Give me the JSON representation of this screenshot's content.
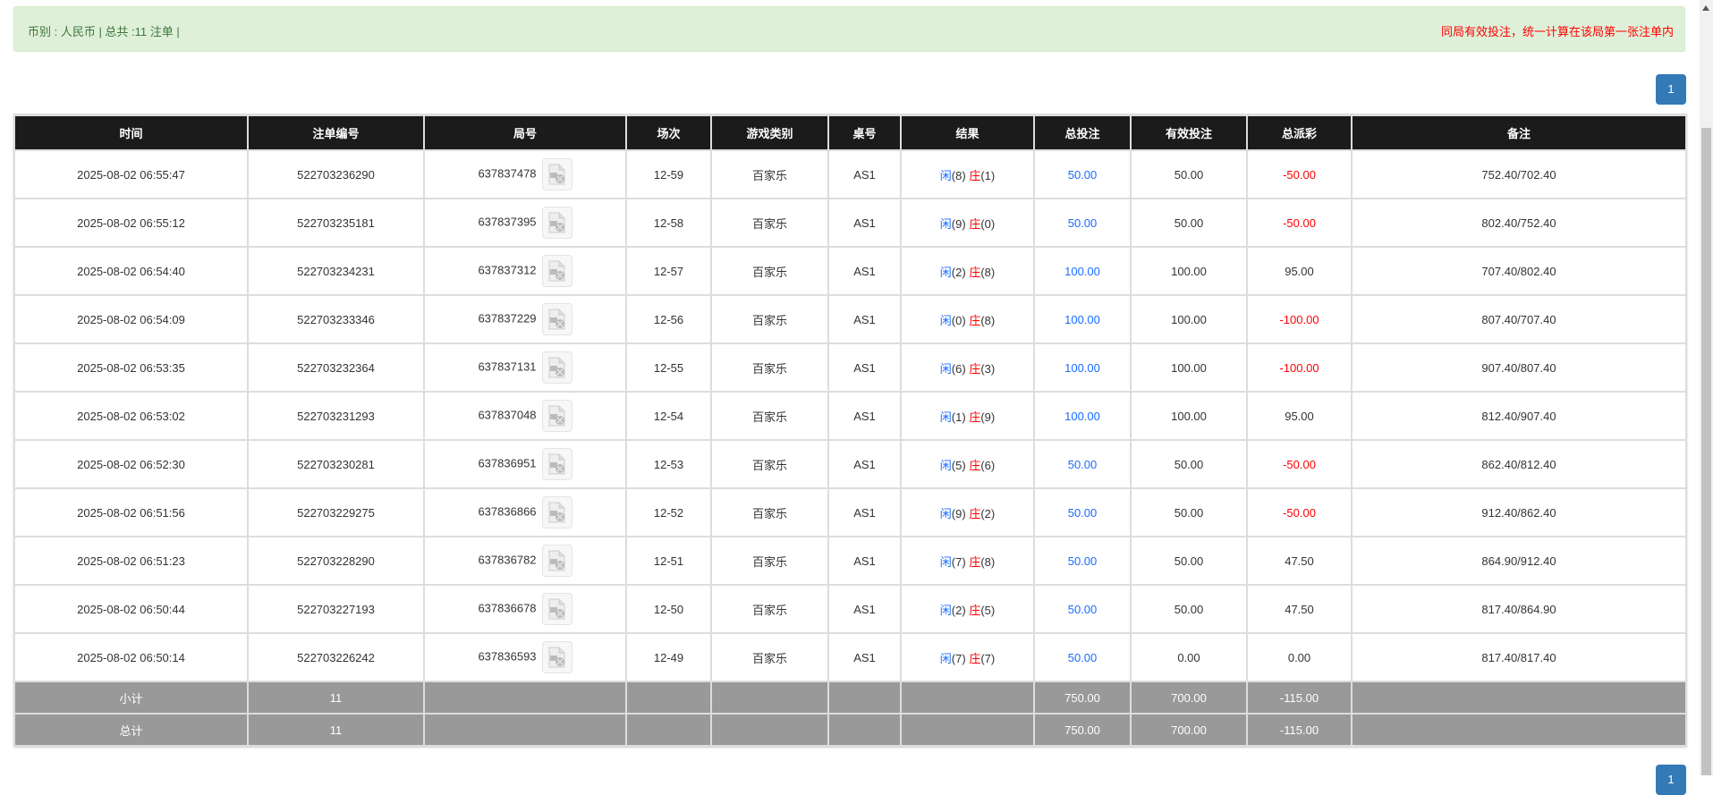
{
  "summary": {
    "left": "币别 : 人民币 | 总共 :11 注单 |",
    "right": "同局有效投注，统一计算在该局第一张注单内"
  },
  "pagination": {
    "current": "1"
  },
  "colors": {
    "blue": "#1a6cff",
    "red": "#ff0000",
    "header_bg": "#1b1b1b",
    "summary_bg": "#999999",
    "alert_bg": "#dff0d8"
  },
  "table": {
    "headers": [
      "时间",
      "注单编号",
      "局号",
      "场次",
      "游戏类别",
      "桌号",
      "结果",
      "总投注",
      "有效投注",
      "总派彩",
      "备注"
    ],
    "rows": [
      {
        "time": "2025-08-02 06:55:47",
        "bet_id": "522703236290",
        "round": "637837478",
        "session": "12-59",
        "game": "百家乐",
        "table": "AS1",
        "player": "闲",
        "player_pts": "(8)",
        "banker": "庄",
        "banker_pts": "(1)",
        "total": "50.00",
        "valid": "50.00",
        "payout": "-50.00",
        "payout_neg": true,
        "total_blue": true,
        "note": "752.40/702.40"
      },
      {
        "time": "2025-08-02 06:55:12",
        "bet_id": "522703235181",
        "round": "637837395",
        "session": "12-58",
        "game": "百家乐",
        "table": "AS1",
        "player": "闲",
        "player_pts": "(9)",
        "banker": "庄",
        "banker_pts": "(0)",
        "total": "50.00",
        "valid": "50.00",
        "payout": "-50.00",
        "payout_neg": true,
        "total_blue": true,
        "note": "802.40/752.40"
      },
      {
        "time": "2025-08-02 06:54:40",
        "bet_id": "522703234231",
        "round": "637837312",
        "session": "12-57",
        "game": "百家乐",
        "table": "AS1",
        "player": "闲",
        "player_pts": "(2)",
        "banker": "庄",
        "banker_pts": "(8)",
        "total": "100.00",
        "valid": "100.00",
        "payout": "95.00",
        "payout_neg": false,
        "total_blue": true,
        "note": "707.40/802.40"
      },
      {
        "time": "2025-08-02 06:54:09",
        "bet_id": "522703233346",
        "round": "637837229",
        "session": "12-56",
        "game": "百家乐",
        "table": "AS1",
        "player": "闲",
        "player_pts": "(0)",
        "banker": "庄",
        "banker_pts": "(8)",
        "total": "100.00",
        "valid": "100.00",
        "payout": "-100.00",
        "payout_neg": true,
        "total_blue": true,
        "note": "807.40/707.40"
      },
      {
        "time": "2025-08-02 06:53:35",
        "bet_id": "522703232364",
        "round": "637837131",
        "session": "12-55",
        "game": "百家乐",
        "table": "AS1",
        "player": "闲",
        "player_pts": "(6)",
        "banker": "庄",
        "banker_pts": "(3)",
        "total": "100.00",
        "valid": "100.00",
        "payout": "-100.00",
        "payout_neg": true,
        "total_blue": true,
        "note": "907.40/807.40"
      },
      {
        "time": "2025-08-02 06:53:02",
        "bet_id": "522703231293",
        "round": "637837048",
        "session": "12-54",
        "game": "百家乐",
        "table": "AS1",
        "player": "闲",
        "player_pts": "(1)",
        "banker": "庄",
        "banker_pts": "(9)",
        "total": "100.00",
        "valid": "100.00",
        "payout": "95.00",
        "payout_neg": false,
        "total_blue": true,
        "note": "812.40/907.40"
      },
      {
        "time": "2025-08-02 06:52:30",
        "bet_id": "522703230281",
        "round": "637836951",
        "session": "12-53",
        "game": "百家乐",
        "table": "AS1",
        "player": "闲",
        "player_pts": "(5)",
        "banker": "庄",
        "banker_pts": "(6)",
        "total": "50.00",
        "valid": "50.00",
        "payout": "-50.00",
        "payout_neg": true,
        "total_blue": true,
        "note": "862.40/812.40"
      },
      {
        "time": "2025-08-02 06:51:56",
        "bet_id": "522703229275",
        "round": "637836866",
        "session": "12-52",
        "game": "百家乐",
        "table": "AS1",
        "player": "闲",
        "player_pts": "(9)",
        "banker": "庄",
        "banker_pts": "(2)",
        "total": "50.00",
        "valid": "50.00",
        "payout": "-50.00",
        "payout_neg": true,
        "total_blue": true,
        "note": "912.40/862.40"
      },
      {
        "time": "2025-08-02 06:51:23",
        "bet_id": "522703228290",
        "round": "637836782",
        "session": "12-51",
        "game": "百家乐",
        "table": "AS1",
        "player": "闲",
        "player_pts": "(7)",
        "banker": "庄",
        "banker_pts": "(8)",
        "total": "50.00",
        "valid": "50.00",
        "payout": "47.50",
        "payout_neg": false,
        "total_blue": true,
        "note": "864.90/912.40"
      },
      {
        "time": "2025-08-02 06:50:44",
        "bet_id": "522703227193",
        "round": "637836678",
        "session": "12-50",
        "game": "百家乐",
        "table": "AS1",
        "player": "闲",
        "player_pts": "(2)",
        "banker": "庄",
        "banker_pts": "(5)",
        "total": "50.00",
        "valid": "50.00",
        "payout": "47.50",
        "payout_neg": false,
        "total_blue": true,
        "note": "817.40/864.90"
      },
      {
        "time": "2025-08-02 06:50:14",
        "bet_id": "522703226242",
        "round": "637836593",
        "session": "12-49",
        "game": "百家乐",
        "table": "AS1",
        "player": "闲",
        "player_pts": "(7)",
        "banker": "庄",
        "banker_pts": "(7)",
        "total": "50.00",
        "valid": "0.00",
        "payout": "0.00",
        "payout_neg": false,
        "total_blue": true,
        "note": "817.40/817.40"
      }
    ],
    "subtotal": {
      "label": "小计",
      "count": "11",
      "total": "750.00",
      "valid": "700.00",
      "payout": "-115.00"
    },
    "grandtotal": {
      "label": "总计",
      "count": "11",
      "total": "750.00",
      "valid": "700.00",
      "payout": "-115.00"
    }
  }
}
